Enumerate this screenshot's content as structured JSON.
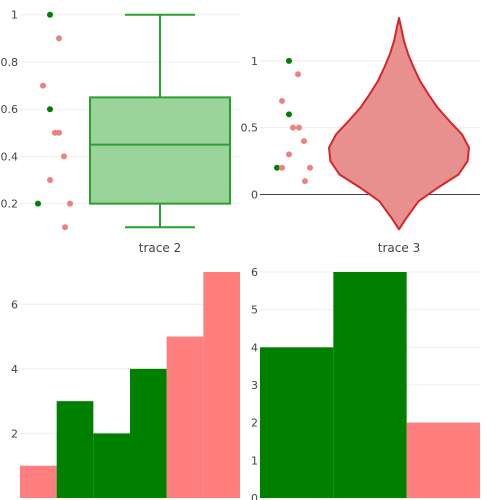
{
  "colors": {
    "green_fill": "#9bd49b",
    "green_line": "#2ca02c",
    "green_point": "#008000",
    "red_fill": "#e89090",
    "red_line": "#d62728",
    "red_point": "#f08080",
    "hist_green": "#008000",
    "hist_red": "#ff7f7f"
  },
  "chart_data": [
    {
      "type": "box",
      "panel": "top-left",
      "category": "trace 2",
      "ylim": [
        0.08,
        1.02
      ],
      "yticks": [
        0.2,
        0.4,
        0.6,
        0.8,
        1
      ],
      "ytick_labels": [
        "0.2",
        "0.4",
        "0.6",
        "0.8",
        "1"
      ],
      "grid": true,
      "box": {
        "q1": 0.2,
        "median": 0.45,
        "q3": 0.65,
        "lowerfence": 0.1,
        "upperfence": 1.0
      },
      "points": [
        {
          "y": 1.0,
          "outlier": true
        },
        {
          "y": 0.9,
          "outlier": false
        },
        {
          "y": 0.7,
          "outlier": false
        },
        {
          "y": 0.6,
          "outlier": true
        },
        {
          "y": 0.5,
          "outlier": false
        },
        {
          "y": 0.5,
          "outlier": false
        },
        {
          "y": 0.4,
          "outlier": false
        },
        {
          "y": 0.3,
          "outlier": false
        },
        {
          "y": 0.2,
          "outlier": true
        },
        {
          "y": 0.2,
          "outlier": false
        },
        {
          "y": 0.1,
          "outlier": false
        }
      ]
    },
    {
      "type": "violin",
      "panel": "top-right",
      "category": "trace 3",
      "ylim": [
        -0.28,
        1.38
      ],
      "yticks": [
        0,
        0.5,
        1
      ],
      "ytick_labels": [
        "0",
        "0.5",
        "1"
      ],
      "grid": true,
      "density": [
        {
          "y": -0.26,
          "w": 0.0
        },
        {
          "y": -0.18,
          "w": 0.1
        },
        {
          "y": -0.05,
          "w": 0.28
        },
        {
          "y": 0.05,
          "w": 0.55
        },
        {
          "y": 0.15,
          "w": 0.85
        },
        {
          "y": 0.25,
          "w": 0.98
        },
        {
          "y": 0.35,
          "w": 1.0
        },
        {
          "y": 0.45,
          "w": 0.9
        },
        {
          "y": 0.55,
          "w": 0.72
        },
        {
          "y": 0.65,
          "w": 0.55
        },
        {
          "y": 0.75,
          "w": 0.42
        },
        {
          "y": 0.85,
          "w": 0.3
        },
        {
          "y": 0.95,
          "w": 0.21
        },
        {
          "y": 1.05,
          "w": 0.13
        },
        {
          "y": 1.15,
          "w": 0.07
        },
        {
          "y": 1.25,
          "w": 0.03
        },
        {
          "y": 1.32,
          "w": 0.0
        }
      ],
      "points": [
        {
          "y": 1.0,
          "outlier": true
        },
        {
          "y": 0.9,
          "outlier": false
        },
        {
          "y": 0.7,
          "outlier": false
        },
        {
          "y": 0.6,
          "outlier": true
        },
        {
          "y": 0.5,
          "outlier": false
        },
        {
          "y": 0.5,
          "outlier": false
        },
        {
          "y": 0.4,
          "outlier": false
        },
        {
          "y": 0.3,
          "outlier": false
        },
        {
          "y": 0.2,
          "outlier": true
        },
        {
          "y": 0.2,
          "outlier": false
        },
        {
          "y": 0.2,
          "outlier": false
        },
        {
          "y": 0.1,
          "outlier": false
        }
      ]
    },
    {
      "type": "bar",
      "panel": "bottom-left",
      "ylim": [
        0,
        7
      ],
      "yticks": [
        2,
        4,
        6
      ],
      "ytick_labels": [
        "2",
        "4",
        "6"
      ],
      "grid": true,
      "bars": [
        {
          "value": 1,
          "group": "red"
        },
        {
          "value": 3,
          "group": "green"
        },
        {
          "value": 2,
          "group": "green"
        },
        {
          "value": 4,
          "group": "green"
        },
        {
          "value": 5,
          "group": "red"
        },
        {
          "value": 7,
          "group": "red"
        }
      ]
    },
    {
      "type": "bar",
      "panel": "bottom-right",
      "ylim": [
        0,
        6
      ],
      "yticks": [
        0,
        1,
        2,
        3,
        4,
        5,
        6
      ],
      "ytick_labels": [
        "0",
        "1",
        "2",
        "3",
        "4",
        "5",
        "6"
      ],
      "grid": true,
      "bars": [
        {
          "value": 4,
          "group": "green"
        },
        {
          "value": 6,
          "group": "green"
        },
        {
          "value": 2,
          "group": "red"
        }
      ]
    }
  ]
}
